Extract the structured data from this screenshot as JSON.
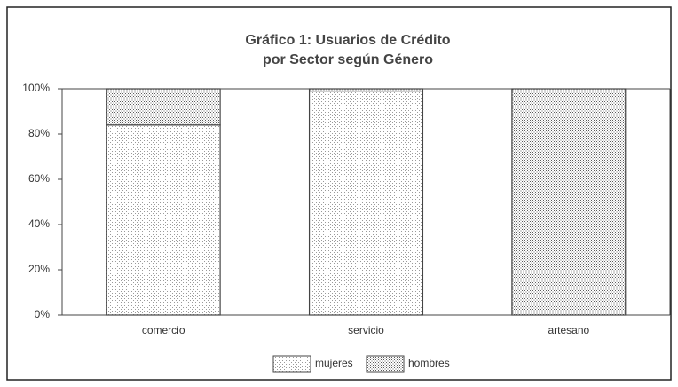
{
  "chart_data": {
    "type": "stacked_bar",
    "title": [
      "Gráfico 1: Usuarios de Crédito",
      "por Sector según Género"
    ],
    "categories": [
      "comercio",
      "servicio",
      "artesano"
    ],
    "series": [
      {
        "name": "mujeres",
        "color": "#9a9a9a",
        "values": [
          84,
          99,
          0
        ]
      },
      {
        "name": "hombres",
        "color": "#5a5a5a",
        "values": [
          16,
          1,
          100
        ]
      }
    ],
    "ylim": [
      0,
      100
    ],
    "yticks": [
      {
        "value": 0,
        "label": "0%"
      },
      {
        "value": 20,
        "label": "20%"
      },
      {
        "value": 40,
        "label": "40%"
      },
      {
        "value": 60,
        "label": "60%"
      },
      {
        "value": 80,
        "label": "80%"
      },
      {
        "value": 100,
        "label": "100%"
      }
    ],
    "legend": "bottom"
  }
}
